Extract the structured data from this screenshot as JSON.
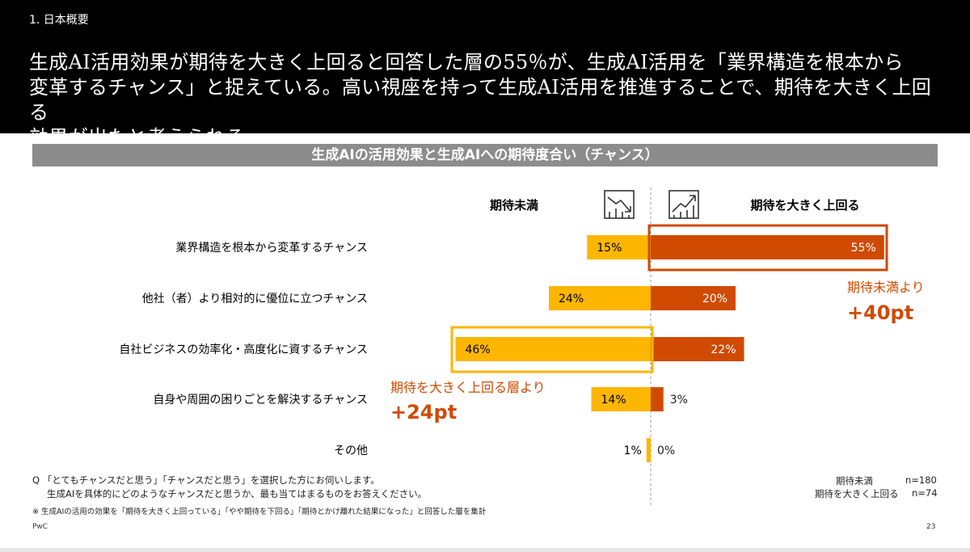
{
  "header": {
    "section": "1. 日本概要",
    "headline_lines": [
      "生成AI活用効果が期待を大きく上回ると回答した層の55％が、生成AI活用を「業界構造を根本から",
      "変革するチャンス」と捉えている。高い視座を持って生成AI活用を推進することで、期待を大きく上回る",
      "効果が出たと考えられる。"
    ]
  },
  "chart_title": "生成AIの活用効果と生成AIへの期待度合い（チャンス）",
  "legend": {
    "left_label": "期待未満",
    "right_label": "期待を大きく上回る"
  },
  "annotations": {
    "right_caption": "期待未満より",
    "right_value": "+40pt",
    "left_caption": "期待を大きく上回る層より",
    "left_value": "+24pt"
  },
  "colors": {
    "below": "#FFB600",
    "above": "#D04A02",
    "highlight_right": "#D04A02",
    "highlight_left": "#FFB600",
    "annotation": "#D04A02"
  },
  "chart_data": {
    "type": "bar",
    "orientation": "diverging-horizontal",
    "title": "生成AIの活用効果と生成AIへの期待度合い（チャンス）",
    "categories": [
      "業界構造を根本から変革するチャンス",
      "他社（者）より相対的に優位に立つチャンス",
      "自社ビジネスの効率化・高度化に資するチャンス",
      "自身や周囲の困りごとを解決するチャンス",
      "その他"
    ],
    "series": [
      {
        "name": "期待未満",
        "values": [
          15,
          24,
          46,
          14,
          1
        ],
        "labels": [
          "15%",
          "24%",
          "46%",
          "14%",
          "1%"
        ]
      },
      {
        "name": "期待を大きく上回る",
        "values": [
          55,
          20,
          22,
          3,
          0
        ],
        "labels": [
          "55%",
          "20%",
          "22%",
          "3%",
          "0%"
        ]
      }
    ],
    "unit": "%"
  },
  "notes": {
    "question_line1": "Q 「とてもチャンスだと思う」「チャンスだと思う」を選択した方にお伺いします。",
    "question_line2": "生成AIを具体的にどのようなチャンスだと思うか、最も当てはまるものをお答えください。",
    "footnote": "※ 生成AIの活用の効果を「期待を大きく上回っている」「やや期待を下回る」「期待とかけ離れた結果になった」と回答した層を集計",
    "sample_left_label": "期待未満",
    "sample_left_n": "n=180",
    "sample_right_label": "期待を大きく上回る",
    "sample_right_n": "n=74"
  },
  "footer": {
    "brand": "PwC",
    "page": "23"
  }
}
